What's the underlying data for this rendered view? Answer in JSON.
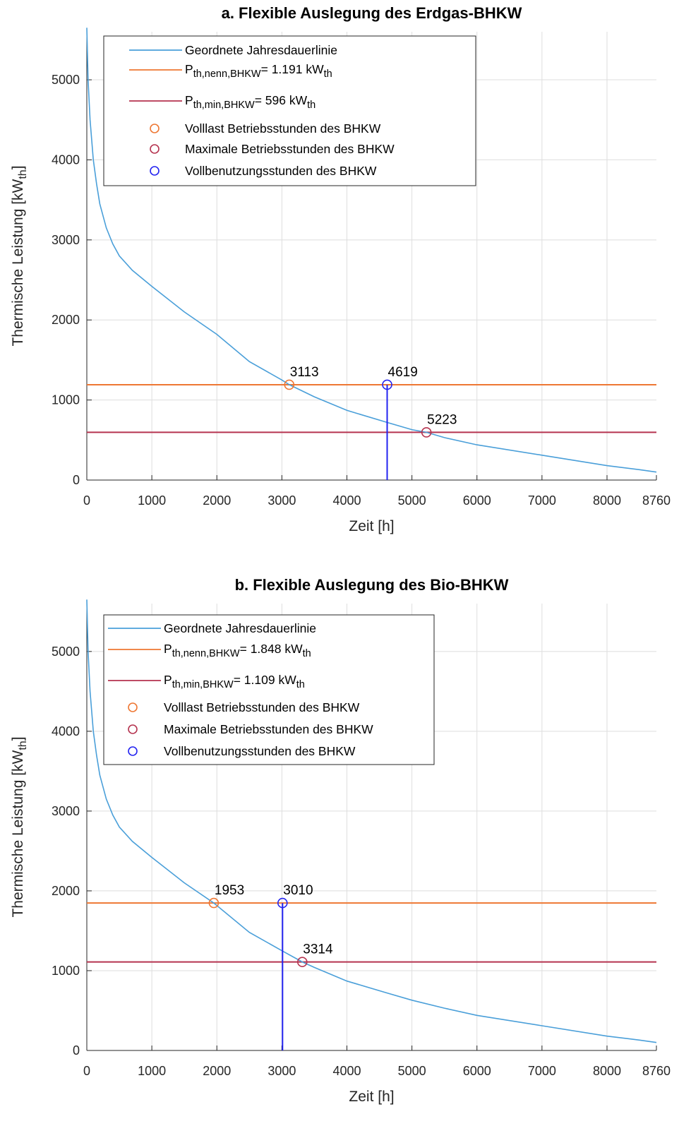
{
  "chart_data": [
    {
      "type": "line",
      "title": "a. Flexible Auslegung des Erdgas-BHKW",
      "xlabel": "Zeit [h]",
      "ylabel": {
        "main": "Thermische Leistung [kW",
        "sub": "th",
        "close": "]"
      },
      "xlim": [
        0,
        8760
      ],
      "ylim": [
        0,
        5600
      ],
      "xticks": [
        0,
        1000,
        2000,
        3000,
        4000,
        5000,
        6000,
        7000,
        8000,
        8760
      ],
      "yticks": [
        0,
        1000,
        2000,
        3000,
        4000,
        5000
      ],
      "grid": true,
      "legend_position": "top-left",
      "colors": {
        "curve": "#4a9fd9",
        "nenn": "#ee7733",
        "min": "#b5334f",
        "vbh": "#2424f0"
      },
      "curve": {
        "name": "Geordnete Jahresdauerlinie",
        "x": [
          0,
          20,
          50,
          100,
          150,
          200,
          300,
          400,
          500,
          700,
          1000,
          1500,
          2000,
          2500,
          3000,
          3113,
          3500,
          4000,
          4619,
          5000,
          5223,
          5500,
          6000,
          7000,
          8000,
          8500,
          8760
        ],
        "y": [
          5650,
          5000,
          4500,
          4000,
          3700,
          3450,
          3150,
          2950,
          2800,
          2620,
          2420,
          2100,
          1820,
          1480,
          1250,
          1191,
          1040,
          870,
          720,
          630,
          596,
          530,
          440,
          310,
          180,
          130,
          100
        ]
      },
      "hlines": [
        {
          "key": "nenn",
          "y": 1191,
          "label": {
            "pre": "P",
            "sub": "th,nenn,BHKW",
            "post": "= 1.191 kW",
            "unit_sub": "th"
          }
        },
        {
          "key": "min",
          "y": 596,
          "label": {
            "pre": "P",
            "sub": "th,min,BHKW",
            "post": "=  596 kW",
            "unit_sub": "th"
          }
        }
      ],
      "points": [
        {
          "key": "nenn",
          "name": "Volllast Betriebsstunden des BHKW",
          "x": 3113,
          "y": 1191,
          "label": "3113"
        },
        {
          "key": "min",
          "name": "Maximale Betriebsstunden des BHKW",
          "x": 5223,
          "y": 596,
          "label": "5223"
        },
        {
          "key": "vbh",
          "name": "Vollbenutzungsstunden des BHKW",
          "x": 4619,
          "y": 1191,
          "label": "4619",
          "stem": true
        }
      ]
    },
    {
      "type": "line",
      "title": "b. Flexible Auslegung des Bio-BHKW",
      "xlabel": "Zeit [h]",
      "ylabel": {
        "main": "Thermische Leistung [kW",
        "sub": "th",
        "close": "]"
      },
      "xlim": [
        0,
        8760
      ],
      "ylim": [
        0,
        5600
      ],
      "xticks": [
        0,
        1000,
        2000,
        3000,
        4000,
        5000,
        6000,
        7000,
        8000,
        8760
      ],
      "yticks": [
        0,
        1000,
        2000,
        3000,
        4000,
        5000
      ],
      "grid": true,
      "legend_position": "top-left",
      "colors": {
        "curve": "#4a9fd9",
        "nenn": "#ee7733",
        "min": "#b5334f",
        "vbh": "#2424f0"
      },
      "curve": {
        "name": "Geordnete Jahresdauerlinie",
        "x": [
          0,
          20,
          50,
          100,
          150,
          200,
          300,
          400,
          500,
          700,
          1000,
          1500,
          1953,
          2500,
          3000,
          3314,
          3500,
          4000,
          4619,
          5000,
          5500,
          6000,
          7000,
          8000,
          8500,
          8760
        ],
        "y": [
          5650,
          5000,
          4500,
          4000,
          3700,
          3450,
          3150,
          2950,
          2800,
          2620,
          2420,
          2100,
          1848,
          1480,
          1250,
          1109,
          1040,
          870,
          720,
          630,
          530,
          440,
          310,
          180,
          130,
          100
        ]
      },
      "hlines": [
        {
          "key": "nenn",
          "y": 1848,
          "label": {
            "pre": " P",
            "sub": "th,nenn,BHKW",
            "post": "= 1.848 kW",
            "unit_sub": "th"
          }
        },
        {
          "key": "min",
          "y": 1109,
          "label": {
            "pre": "P",
            "sub": "th,min,BHKW",
            "post": "= 1.109 kW",
            "unit_sub": "th"
          }
        }
      ],
      "points": [
        {
          "key": "nenn",
          "name": "Volllast Betriebsstunden des BHKW",
          "x": 1953,
          "y": 1848,
          "label": "1953"
        },
        {
          "key": "min",
          "name": "Maximale Betriebsstunden des BHKW",
          "x": 3314,
          "y": 1109,
          "label": "3314"
        },
        {
          "key": "vbh",
          "name": "Vollbenutzungsstunden des BHKW",
          "x": 3010,
          "y": 1848,
          "label": "3010",
          "stem": true
        }
      ]
    }
  ]
}
